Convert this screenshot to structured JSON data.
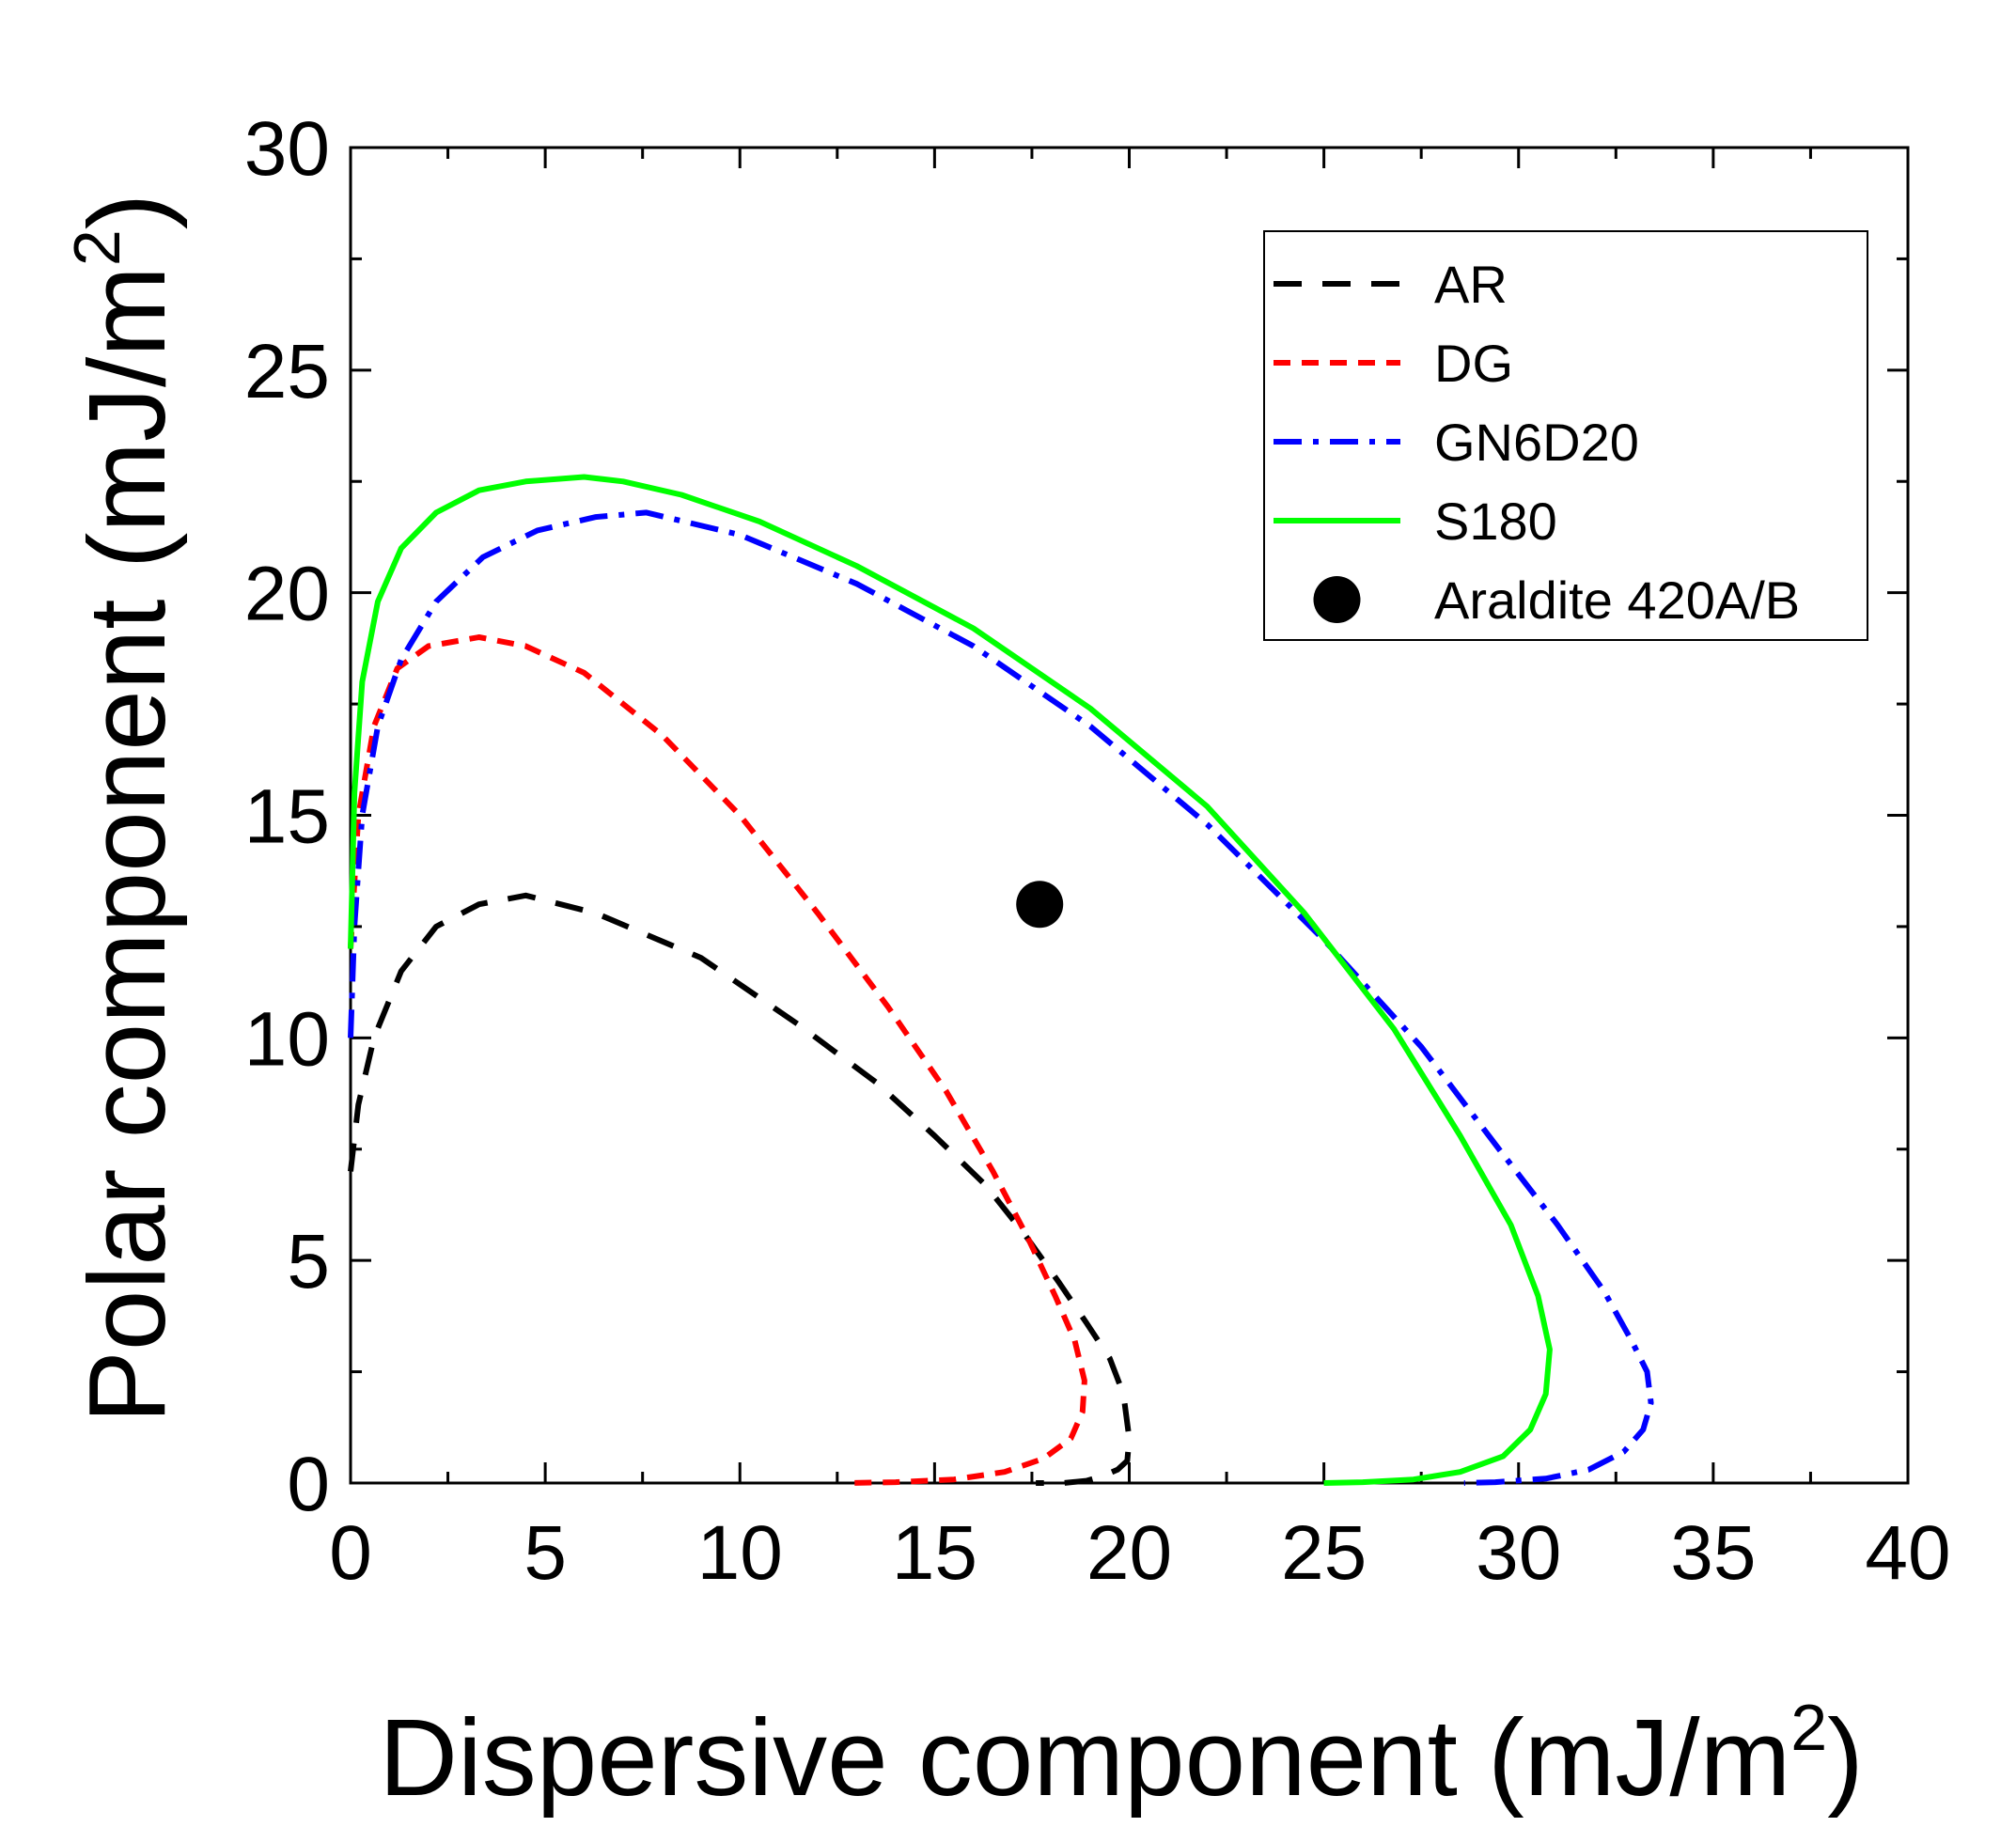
{
  "chart_data": {
    "type": "line",
    "xlabel": "Dispersive component (mJ/m",
    "xlabel_sup": "2",
    "xlabel_end": ")",
    "ylabel": "Polar component (mJ/m",
    "ylabel_sup": "2",
    "ylabel_end": ")",
    "xlim": [
      0,
      40
    ],
    "ylim": [
      0,
      30
    ],
    "xticks": [
      "0",
      "5",
      "10",
      "15",
      "20",
      "25",
      "30",
      "35",
      "40"
    ],
    "yticks": [
      "0",
      "5",
      "10",
      "15",
      "20",
      "25",
      "30"
    ],
    "legend_position": "top-right",
    "series": [
      {
        "name": "AR",
        "color": "#000000",
        "style": "dash",
        "x": [
          0.0,
          0.2,
          0.6,
          1.3,
          2.2,
          3.3,
          4.5,
          6.3,
          9.0,
          11.5,
          13.5,
          15.0,
          16.3,
          17.3,
          18.2,
          18.9,
          19.5,
          19.85,
          20.0,
          19.95,
          19.7,
          19.3,
          18.9,
          18.3,
          17.6
        ],
        "y": [
          7.0,
          8.5,
          10.0,
          11.5,
          12.5,
          13.0,
          13.2,
          12.8,
          11.8,
          10.3,
          9.0,
          7.8,
          6.7,
          5.6,
          4.5,
          3.6,
          2.8,
          2.0,
          1.0,
          0.5,
          0.3,
          0.15,
          0.05,
          0.0,
          0.0
        ]
      },
      {
        "name": "DG",
        "color": "#ff0000",
        "style": "short-dash",
        "x": [
          0.0,
          0.2,
          0.6,
          1.2,
          2.0,
          3.3,
          4.5,
          6.0,
          8.0,
          10.0,
          12.0,
          13.8,
          15.3,
          16.5,
          17.4,
          18.1,
          18.6,
          18.85,
          18.8,
          18.5,
          17.8,
          16.8,
          15.5,
          14.0,
          12.7
        ],
        "y": [
          12.0,
          15.0,
          17.0,
          18.3,
          18.8,
          19.0,
          18.8,
          18.2,
          16.8,
          15.0,
          12.8,
          10.7,
          8.8,
          7.0,
          5.5,
          4.2,
          3.2,
          2.3,
          1.6,
          1.0,
          0.55,
          0.25,
          0.08,
          0.02,
          0.0
        ]
      },
      {
        "name": "GN6D20",
        "color": "#0000ff",
        "style": "dash-dot",
        "x": [
          0.0,
          0.1,
          0.3,
          0.7,
          1.3,
          2.2,
          3.4,
          4.8,
          6.3,
          7.6,
          10.0,
          13.0,
          16.0,
          19.0,
          22.0,
          25.0,
          27.5,
          29.5,
          31.0,
          32.2,
          32.9,
          33.3,
          33.4,
          33.2,
          32.7,
          31.8,
          30.7,
          29.4,
          28.6
        ],
        "y": [
          10.0,
          12.5,
          15.0,
          17.0,
          18.5,
          19.8,
          20.8,
          21.4,
          21.7,
          21.8,
          21.3,
          20.2,
          18.8,
          17.0,
          14.8,
          12.2,
          9.8,
          7.5,
          5.8,
          4.3,
          3.2,
          2.5,
          1.8,
          1.2,
          0.7,
          0.3,
          0.1,
          0.02,
          0.0
        ]
      },
      {
        "name": "S180",
        "color": "#00ff00",
        "style": "solid",
        "x": [
          0.0,
          0.1,
          0.3,
          0.7,
          1.3,
          2.2,
          3.3,
          4.5,
          6.0,
          7.0,
          8.5,
          10.5,
          13.0,
          16.0,
          19.0,
          22.0,
          24.5,
          26.8,
          28.5,
          29.8,
          30.5,
          30.8,
          30.7,
          30.3,
          29.6,
          28.5,
          27.3,
          26.0,
          25.0
        ],
        "y": [
          12.0,
          15.5,
          18.0,
          19.8,
          21.0,
          21.8,
          22.3,
          22.5,
          22.6,
          22.5,
          22.2,
          21.6,
          20.6,
          19.2,
          17.4,
          15.2,
          12.8,
          10.2,
          7.8,
          5.8,
          4.2,
          3.0,
          2.0,
          1.2,
          0.6,
          0.25,
          0.08,
          0.02,
          0.0
        ]
      },
      {
        "name": "Araldite 420A/B",
        "color": "#000000",
        "style": "marker",
        "x": [
          17.7
        ],
        "y": [
          13.0
        ]
      }
    ]
  }
}
